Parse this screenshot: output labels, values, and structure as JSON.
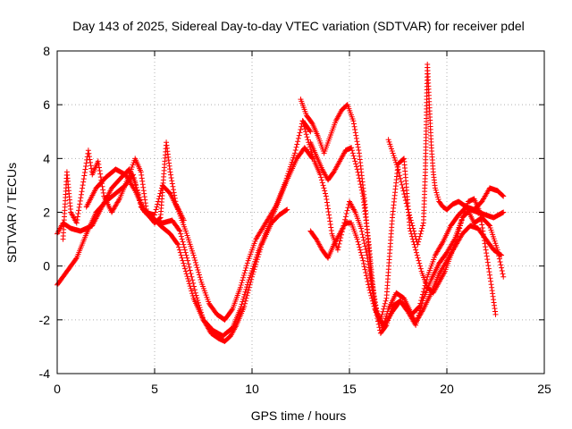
{
  "chart_data": {
    "type": "scatter",
    "title": "Day 143 of 2025, Sidereal Day-to-day VTEC variation (SDTVAR) for receiver pdel",
    "xlabel": "GPS time / hours",
    "ylabel": "SDTVAR / TECUs",
    "xlim": [
      0,
      25
    ],
    "ylim": [
      -4,
      8
    ],
    "xticks": [
      0,
      5,
      10,
      15,
      20,
      25
    ],
    "yticks": [
      -4,
      -2,
      0,
      2,
      4,
      6,
      8
    ],
    "xtick_labels": [
      "0",
      "5",
      "10",
      "15",
      "20",
      "25"
    ],
    "ytick_labels": [
      "-4",
      "-2",
      "0",
      "2",
      "4",
      "6",
      "8"
    ],
    "grid": true,
    "marker": "+",
    "color": "#ff0000",
    "series": [
      {
        "name": "track-a",
        "x": [
          0.0,
          0.3,
          0.7,
          1.2,
          1.8,
          2.3,
          2.8,
          3.3,
          3.7,
          4.0,
          4.4,
          4.9,
          5.4,
          5.9,
          6.3,
          6.7,
          7.1,
          7.5,
          7.9,
          8.3,
          8.6,
          8.9,
          9.2,
          9.6,
          10.0,
          10.5,
          11.0,
          11.4,
          11.8
        ],
        "y": [
          1.2,
          1.6,
          1.4,
          1.3,
          1.5,
          2.2,
          2.9,
          3.3,
          3.6,
          3.1,
          2.1,
          1.7,
          1.6,
          1.7,
          1.3,
          0.2,
          -1.0,
          -2.0,
          -2.5,
          -2.7,
          -2.8,
          -2.6,
          -2.2,
          -1.5,
          -0.4,
          0.8,
          1.6,
          1.9,
          2.1
        ]
      },
      {
        "name": "track-b",
        "x": [
          0.0,
          0.5,
          1.0,
          1.5,
          2.0,
          2.5,
          3.0,
          3.5,
          3.9,
          4.3,
          4.8,
          5.3,
          5.8,
          6.2,
          6.6,
          7.0,
          7.5,
          8.0,
          8.5,
          9.0,
          9.4,
          9.8,
          10.3,
          10.8,
          11.3,
          11.8,
          12.3,
          12.7,
          13.1
        ],
        "y": [
          -0.7,
          -0.2,
          0.3,
          1.2,
          2.0,
          2.4,
          2.7,
          3.0,
          3.4,
          2.2,
          1.9,
          1.5,
          1.2,
          0.8,
          -0.2,
          -1.2,
          -2.0,
          -2.4,
          -2.6,
          -2.3,
          -1.6,
          -0.6,
          0.5,
          1.4,
          2.3,
          3.2,
          4.0,
          4.4,
          4.0
        ]
      },
      {
        "name": "track-c",
        "x": [
          1.5,
          2.0,
          2.5,
          3.0,
          3.5,
          4.0,
          4.5,
          5.0,
          5.4,
          5.8,
          6.2,
          6.6,
          7.0,
          7.4,
          7.8,
          8.2,
          8.6,
          9.0,
          9.4,
          9.8,
          10.2,
          10.7,
          11.2,
          11.7,
          12.2,
          12.6,
          13.0
        ],
        "y": [
          2.2,
          2.9,
          3.3,
          3.6,
          3.4,
          2.8,
          2.0,
          1.9,
          3.0,
          2.7,
          2.1,
          1.3,
          0.4,
          -0.6,
          -1.4,
          -1.8,
          -2.0,
          -1.6,
          -0.8,
          0.2,
          1.0,
          1.6,
          2.2,
          3.1,
          4.2,
          5.4,
          5.0
        ]
      },
      {
        "name": "track-d",
        "x": [
          12.5,
          12.8,
          13.1,
          13.4,
          13.7,
          14.0,
          14.3,
          14.6,
          14.9,
          15.2,
          15.5,
          15.8,
          16.1,
          16.4,
          16.7,
          17.0,
          17.4,
          17.8,
          18.2,
          18.6,
          19.0,
          19.4,
          19.8,
          20.2,
          20.6,
          21.0,
          21.4,
          21.8,
          22.2,
          22.6,
          22.9
        ],
        "y": [
          6.2,
          5.6,
          5.3,
          4.8,
          4.2,
          4.8,
          5.4,
          5.8,
          6.0,
          5.4,
          4.2,
          2.3,
          -0.3,
          -1.7,
          -2.3,
          -1.6,
          -1.0,
          -1.2,
          -1.8,
          -1.5,
          -0.4,
          0.4,
          0.9,
          1.5,
          1.9,
          2.2,
          2.1,
          2.4,
          2.9,
          2.8,
          2.6
        ]
      },
      {
        "name": "track-e",
        "x": [
          13.0,
          13.3,
          13.6,
          13.9,
          14.2,
          14.5,
          14.8,
          15.1,
          15.4,
          15.7,
          16.0,
          16.3,
          16.6,
          16.9,
          17.2,
          17.6,
          18.0,
          18.4,
          18.8,
          19.2,
          19.6,
          20.0,
          20.4,
          20.8,
          21.2,
          21.6,
          22.0,
          22.4,
          22.9
        ],
        "y": [
          4.6,
          4.1,
          3.6,
          3.2,
          3.5,
          3.9,
          4.3,
          4.4,
          3.6,
          2.6,
          0.8,
          -1.5,
          -2.5,
          -2.2,
          -1.5,
          -1.3,
          -1.7,
          -2.2,
          -1.2,
          -0.5,
          0.1,
          0.5,
          1.0,
          1.8,
          2.1,
          2.0,
          1.9,
          1.8,
          2.0
        ]
      },
      {
        "name": "track-f",
        "x": [
          12.6,
          12.9,
          13.2,
          13.5,
          13.8,
          14.1,
          14.4,
          14.7,
          15.0,
          15.3,
          15.6,
          15.9,
          16.2,
          16.5,
          16.8,
          17.2,
          17.6,
          18.0,
          18.4,
          18.8,
          19.2,
          19.6,
          20.0,
          20.4,
          20.8,
          21.2,
          21.6,
          22.0,
          22.4,
          22.8
        ],
        "y": [
          5.4,
          4.6,
          3.9,
          3.4,
          2.6,
          1.2,
          0.6,
          1.5,
          2.4,
          2.0,
          1.4,
          0.4,
          -1.0,
          -2.0,
          -2.2,
          -1.7,
          -1.3,
          -1.6,
          -2.1,
          -1.6,
          -1.0,
          -0.3,
          0.2,
          0.7,
          1.2,
          1.5,
          1.4,
          1.0,
          0.6,
          0.4
        ]
      },
      {
        "name": "track-g",
        "x": [
          13.0,
          13.3,
          13.6,
          13.9,
          14.2,
          14.5,
          14.8,
          15.1,
          15.4,
          15.7,
          16.0,
          16.3,
          16.6,
          16.9,
          17.2,
          17.5,
          17.8,
          18.1,
          18.4,
          18.7,
          19.0,
          19.3,
          19.6,
          19.9,
          20.2,
          20.5,
          20.8,
          21.1,
          21.4,
          21.7,
          22.0,
          22.3,
          22.5
        ],
        "y": [
          1.3,
          1.0,
          0.6,
          0.3,
          0.8,
          1.2,
          1.6,
          1.6,
          1.0,
          0.2,
          -0.8,
          -1.6,
          -2.0,
          -1.2,
          1.8,
          3.8,
          4.0,
          1.4,
          0.6,
          -0.2,
          -0.8,
          -1.0,
          -0.6,
          -0.2,
          0.4,
          1.0,
          1.8,
          2.4,
          2.5,
          2.0,
          0.6,
          -0.8,
          -1.8
        ]
      },
      {
        "name": "track-h",
        "x": [
          17.0,
          17.5,
          18.0,
          18.5,
          18.8,
          18.9,
          19.0,
          19.1,
          19.2,
          19.3,
          19.4,
          19.6,
          19.8,
          20.0,
          20.3,
          20.6,
          21.0,
          21.4,
          21.8,
          22.2,
          22.6,
          22.9
        ],
        "y": [
          4.7,
          3.6,
          2.1,
          0.8,
          1.6,
          3.6,
          7.5,
          6.0,
          4.5,
          3.5,
          2.9,
          2.4,
          2.2,
          2.1,
          2.3,
          2.4,
          2.2,
          1.6,
          1.8,
          1.5,
          0.6,
          -0.4
        ]
      },
      {
        "name": "track-i",
        "x": [
          0.3,
          0.5,
          0.7,
          1.0,
          1.6,
          1.8,
          2.1,
          2.4,
          2.8,
          3.2,
          3.6,
          4.0,
          4.3,
          4.6,
          5.0,
          5.3,
          5.6,
          5.8,
          6.1,
          6.5
        ],
        "y": [
          1.0,
          3.5,
          2.0,
          1.6,
          4.3,
          3.4,
          3.9,
          2.6,
          2.0,
          2.5,
          3.2,
          4.0,
          3.5,
          2.0,
          1.6,
          1.8,
          4.6,
          3.5,
          2.3,
          1.7
        ]
      }
    ]
  }
}
